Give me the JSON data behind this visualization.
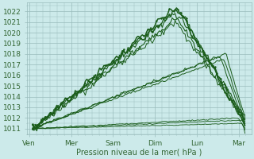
{
  "xlabel": "Pression niveau de la mer( hPa )",
  "ylim": [
    1010.5,
    1022.8
  ],
  "yticks": [
    1011,
    1012,
    1013,
    1014,
    1015,
    1016,
    1017,
    1018,
    1019,
    1020,
    1021,
    1022
  ],
  "xtick_labels": [
    "Ven",
    "Mer",
    "Sam",
    "Dim",
    "Lun",
    "Mar"
  ],
  "xtick_positions": [
    0,
    1,
    2,
    3,
    4,
    5
  ],
  "xlim": [
    -0.05,
    5.3
  ],
  "bg_color": "#cceaea",
  "grid_color": "#99bbbb",
  "line_color": "#1a5c1a",
  "text_color": "#336633",
  "xlabel_color": "#336633"
}
